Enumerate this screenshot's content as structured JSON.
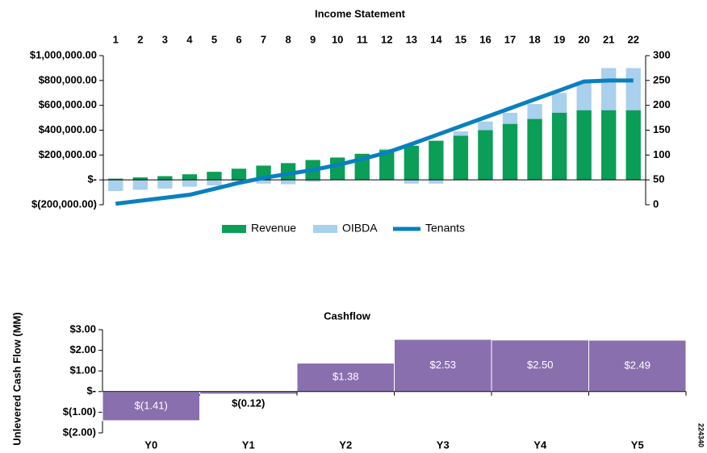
{
  "chart_data": [
    {
      "type": "combo",
      "title": "Income Statement",
      "categories": [
        "1",
        "2",
        "3",
        "4",
        "5",
        "6",
        "7",
        "8",
        "9",
        "10",
        "11",
        "12",
        "13",
        "14",
        "15",
        "16",
        "17",
        "18",
        "19",
        "20",
        "21",
        "22"
      ],
      "series": [
        {
          "name": "Revenue",
          "type": "bar",
          "color": "#0a9e57",
          "values": [
            10000,
            20000,
            30000,
            45000,
            65000,
            90000,
            115000,
            135000,
            160000,
            180000,
            210000,
            240000,
            275000,
            315000,
            355000,
            400000,
            450000,
            490000,
            540000,
            560000,
            560000,
            560000
          ]
        },
        {
          "name": "OIBDA",
          "type": "bar",
          "color": "#a9d0ec",
          "values": [
            -90000,
            -80000,
            -70000,
            -55000,
            -45000,
            -10000,
            -30000,
            -35000,
            -15000,
            5000,
            200000,
            250000,
            -30000,
            -30000,
            390000,
            470000,
            540000,
            610000,
            700000,
            790000,
            900000,
            900000
          ]
        },
        {
          "name": "Tenants",
          "type": "line",
          "axis": "y2",
          "color": "#0a80be",
          "values": [
            2,
            8,
            14,
            20,
            32,
            44,
            54,
            62,
            70,
            80,
            92,
            105,
            122,
            140,
            158,
            176,
            194,
            212,
            230,
            248,
            250,
            250
          ]
        }
      ],
      "ylim": [
        -200000,
        1000000
      ],
      "yticks": [
        {
          "value": -200000,
          "label": "$(200,000.00)"
        },
        {
          "value": 0,
          "label": "$-"
        },
        {
          "value": 200000,
          "label": "$200,000.00"
        },
        {
          "value": 400000,
          "label": "$400,000.00"
        },
        {
          "value": 600000,
          "label": "$600,000.00"
        },
        {
          "value": 800000,
          "label": "$800,000.00"
        },
        {
          "value": 1000000,
          "label": "$1,000,000.00"
        }
      ],
      "y2lim": [
        0,
        300
      ],
      "y2ticks": [
        0,
        50,
        100,
        150,
        200,
        250,
        300
      ],
      "legend": "bottom"
    },
    {
      "type": "bar",
      "title": "Cashflow",
      "ylabel": "Unlevered Cash Flow (MM)",
      "categories": [
        "Y0",
        "Y1",
        "Y2",
        "Y3",
        "Y4",
        "Y5"
      ],
      "values": [
        -1.41,
        -0.12,
        1.38,
        2.53,
        2.5,
        2.49
      ],
      "value_labels": [
        "$(1.41)",
        "$(0.12)",
        "$1.38",
        "$2.53",
        "$2.50",
        "$2.49"
      ],
      "color": "#8a6fae",
      "ylim": [
        -2,
        3
      ],
      "yticks": [
        {
          "value": -2,
          "label": "$(2.00)"
        },
        {
          "value": -1,
          "label": "$(1.00)"
        },
        {
          "value": 0,
          "label": "$-"
        },
        {
          "value": 1,
          "label": "$1.00"
        },
        {
          "value": 2,
          "label": "$2.00"
        },
        {
          "value": 3,
          "label": "$3.00"
        }
      ],
      "figure_id": "224340"
    }
  ]
}
